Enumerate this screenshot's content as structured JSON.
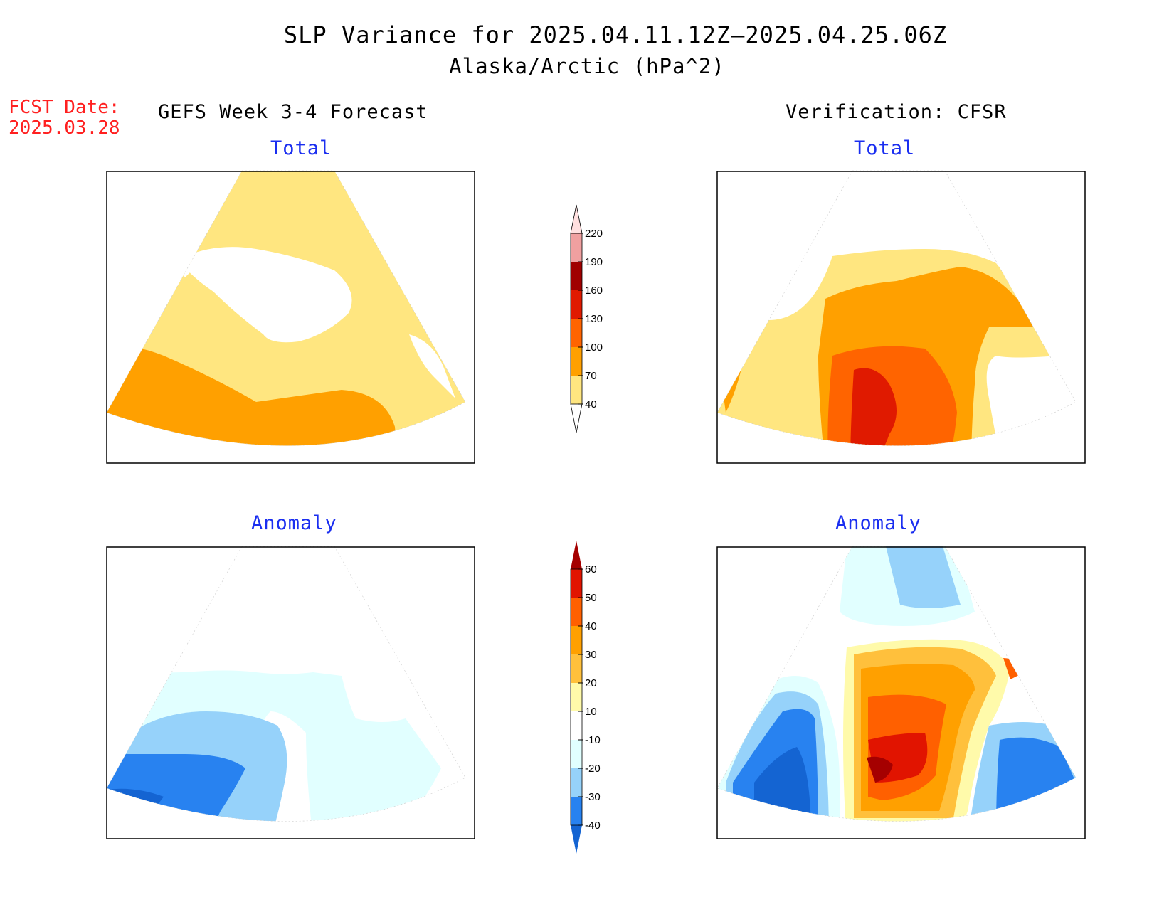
{
  "title": "SLP Variance for 2025.04.11.12Z–2025.04.25.06Z",
  "subtitle": "Alaska/Arctic (hPa^2)",
  "fcst_date_label": "FCST Date:",
  "fcst_date": "2025.03.28",
  "left_column_title": "GEFS Week 3-4 Forecast",
  "right_column_title": "Verification: CFSR",
  "panels": {
    "top_left_label": "Total",
    "top_right_label": "Total",
    "bottom_left_label": "Anomaly",
    "bottom_right_label": "Anomaly"
  },
  "total_colorbar": {
    "levels": [
      40,
      70,
      100,
      130,
      160,
      190,
      220
    ],
    "tick_labels": [
      "40",
      "70",
      "100",
      "130",
      "160",
      "190",
      "220"
    ],
    "colors": [
      "#ffe680",
      "#ffa000",
      "#ff6400",
      "#e01a00",
      "#a00000",
      "#f0a0a0",
      "#ffe0e0"
    ]
  },
  "anomaly_colorbar": {
    "levels": [
      -40,
      -30,
      -20,
      -10,
      10,
      20,
      30,
      40,
      50,
      60
    ],
    "tick_labels": [
      "-40",
      "-30",
      "-20",
      "-10",
      "10",
      "20",
      "30",
      "40",
      "50",
      "60"
    ],
    "colors": [
      "#1464d2",
      "#2882f0",
      "#96d2fa",
      "#e1ffff",
      "#ffffff",
      "#fffaaa",
      "#ffc03c",
      "#ffa000",
      "#ff6000",
      "#e11400",
      "#a50000"
    ]
  }
}
